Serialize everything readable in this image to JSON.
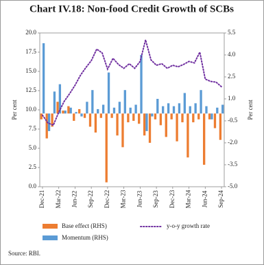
{
  "chart_data": {
    "type": "combo",
    "title": "Chart IV.18: Non-food Credit Growth of SCBs",
    "y_label": "Per cent",
    "y2_label": "Per cent",
    "categories": [
      "Dec-21",
      null,
      null,
      "Mar-22",
      null,
      null,
      "Jun-22",
      null,
      null,
      "Sep-22",
      null,
      null,
      "Dec-22",
      null,
      null,
      "Mar-23",
      null,
      null,
      "Jun-23",
      null,
      null,
      "Sep-23",
      null,
      null,
      "Dec-23",
      null,
      null,
      "Mar-24",
      null,
      null,
      "Jun-24",
      null,
      null,
      "Sep-24"
    ],
    "series": [
      {
        "name": "Base effect (RHS)",
        "type": "bar",
        "axis": "y2",
        "color": "#ed7d31",
        "values": [
          -0.4,
          -1.7,
          -0.9,
          0.8,
          0.2,
          0.5,
          -0.5,
          0.3,
          -0.3,
          -0.9,
          -1.3,
          -0.3,
          -4.7,
          -0.3,
          -1.5,
          -2.3,
          -0.6,
          -0.5,
          -0.7,
          -1.5,
          -2.0,
          -0.4,
          -0.8,
          -1.6,
          -0.4,
          -1.9,
          -0.6,
          -3.0,
          -0.6,
          -0.4,
          -3.5,
          -0.4,
          -1.0,
          -1.8
        ]
      },
      {
        "name": "Momentum (RHS)",
        "type": "bar",
        "axis": "y2",
        "color": "#5b9bd5",
        "values": [
          4.8,
          -1.2,
          1.5,
          2.0,
          0.2,
          0.4,
          0.1,
          -0.2,
          0.8,
          1.6,
          0.3,
          0.6,
          2.8,
          0.4,
          0.8,
          1.6,
          0.4,
          0.6,
          4.0,
          -1.2,
          -0.2,
          1.0,
          0.5,
          0.7,
          0.5,
          0.7,
          1.4,
          0.5,
          0.7,
          1.6,
          0.5,
          -0.4,
          0.4,
          0.6
        ]
      },
      {
        "name": "y-o-y growth rate",
        "type": "line",
        "color": "#7030a0",
        "values": [
          9.3,
          8.3,
          8.0,
          9.7,
          11.1,
          12.1,
          13.2,
          14.5,
          15.5,
          16.4,
          17.9,
          17.4,
          15.3,
          16.7,
          15.9,
          15.4,
          16.0,
          15.4,
          16.3,
          19.1,
          16.5,
          15.8,
          16.0,
          15.4,
          15.8,
          15.6,
          15.9,
          16.3,
          16.1,
          17.5,
          14.0,
          13.7,
          13.6,
          13.0
        ]
      }
    ],
    "ylim": [
      0,
      20
    ],
    "yticks": [
      {
        "value": 0,
        "label": "0.0"
      },
      2.5,
      {
        "value": 5,
        "label": "5.0"
      },
      7.5,
      {
        "value": 10,
        "label": "10.0"
      },
      12.5,
      {
        "value": 15,
        "label": "15.0"
      },
      17.5,
      {
        "value": 20,
        "label": "20.0"
      }
    ],
    "y2lim": [
      -5,
      5.5
    ],
    "y2ticks": [
      {
        "value": -5,
        "label": "-5.0"
      },
      -3.5,
      {
        "value": -2,
        "label": "-2.0"
      },
      -0.5,
      {
        "value": 1,
        "label": "1.0"
      },
      2.5,
      {
        "value": 4,
        "label": "4.0"
      },
      5.5
    ],
    "source": "Source: RBI."
  }
}
